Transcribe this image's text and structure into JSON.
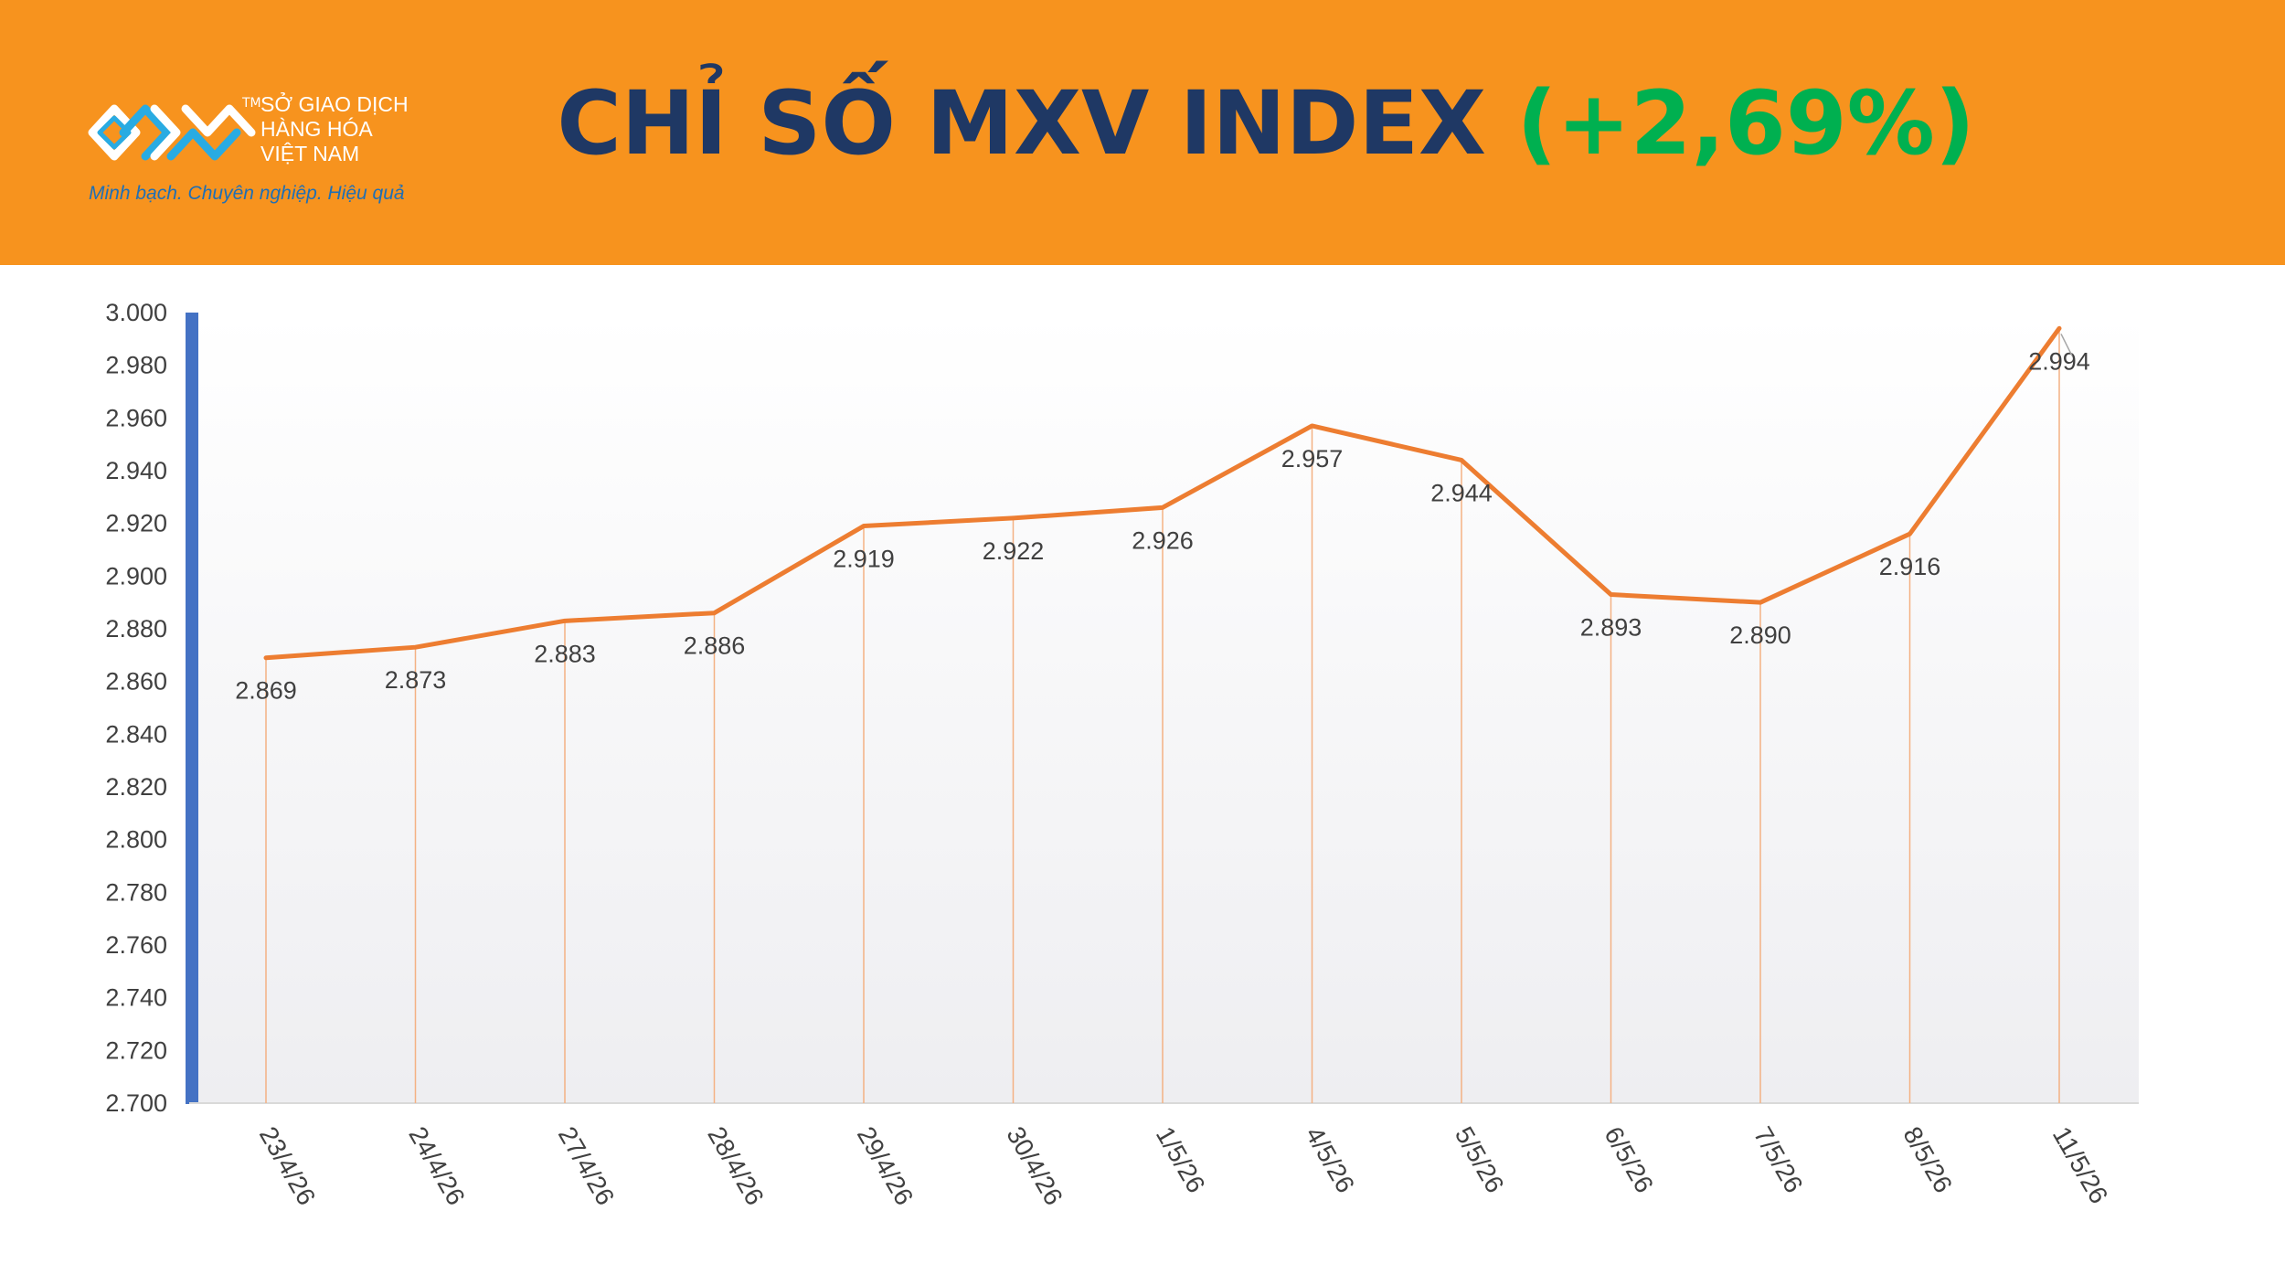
{
  "header": {
    "title_main": "CHỈ SỐ MXV INDEX",
    "title_change": "(+2,69%)",
    "background_color": "#f7931e",
    "title_color": "#1f3864",
    "change_color": "#00b050"
  },
  "logo": {
    "tm": "TM",
    "line1": "SỞ GIAO DỊCH",
    "line2": "HÀNG HÓA",
    "line3": "VIỆT NAM",
    "slogan": "Minh bạch. Chuyên nghiệp. Hiệu quả"
  },
  "chart_data": {
    "type": "line",
    "title": "",
    "xlabel": "",
    "ylabel": "",
    "categories": [
      "23/4/26",
      "24/4/26",
      "27/4/26",
      "28/4/26",
      "29/4/26",
      "30/4/26",
      "1/5/26",
      "4/5/26",
      "5/5/26",
      "6/5/26",
      "7/5/26",
      "8/5/26",
      "11/5/26"
    ],
    "series": [
      {
        "values": [
          2869,
          2873,
          2883,
          2886,
          2919,
          2922,
          2926,
          2957,
          2944,
          2893,
          2890,
          2916,
          2994
        ],
        "labels": [
          "2.869",
          "2.873",
          "2.883",
          "2.886",
          "2.919",
          "2.922",
          "2.926",
          "2.957",
          "2.944",
          "2.893",
          "2.890",
          "2.916",
          "2.994"
        ],
        "color": "#ed7d31"
      }
    ],
    "ylim": [
      2700,
      3000
    ],
    "ytick_values": [
      2700,
      2720,
      2740,
      2760,
      2780,
      2800,
      2820,
      2840,
      2860,
      2880,
      2900,
      2920,
      2940,
      2960,
      2980,
      3000
    ],
    "yticks": [
      "2.700",
      "2.720",
      "2.740",
      "2.760",
      "2.780",
      "2.800",
      "2.820",
      "2.840",
      "2.860",
      "2.880",
      "2.900",
      "2.920",
      "2.940",
      "2.960",
      "2.980",
      "3.000"
    ],
    "grid": false,
    "drop_lines": true,
    "axis_accent_color": "#4472c4"
  }
}
